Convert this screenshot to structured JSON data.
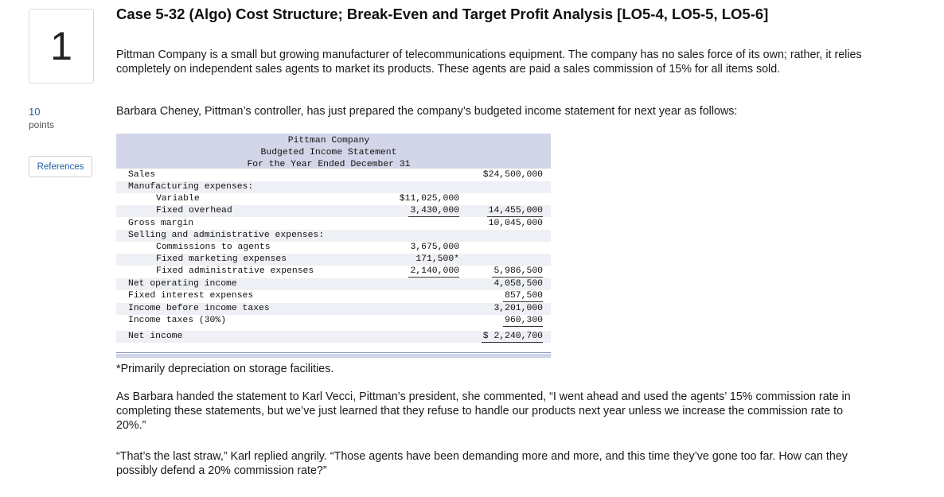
{
  "sidebar": {
    "question_number": "1",
    "points_value": "10",
    "points_label": "points",
    "references_button": "References"
  },
  "title": "Case 5-32 (Algo) Cost Structure; Break-Even and Target Profit Analysis [LO5-4, LO5-5, LO5-6]",
  "paragraphs": {
    "intro": "Pittman Company is a small but growing manufacturer of telecommunications equipment. The company has no sales force of its own; rather, it relies completely on independent sales agents to market its products. These agents are paid a sales commission of 15% for all items sold.",
    "controller": "Barbara Cheney, Pittman’s controller, has just prepared the company’s budgeted income statement for next year as follows:",
    "footnote": "*Primarily depreciation on storage facilities.",
    "handed": "As Barbara handed the statement to Karl Vecci, Pittman’s president, she commented, “I went ahead and used the agents’ 15% commission rate in completing these statements, but we’ve just learned that they refuse to handle our products next year unless we increase the commission rate to 20%.”",
    "karl": "“That’s the last straw,” Karl replied angrily. “Those agents have been demanding more and more, and this time they’ve gone too far. How can they possibly defend a 20% commission rate?”"
  },
  "statement": {
    "company": "Pittman Company",
    "name": "Budgeted Income Statement",
    "period": "For the Year Ended December 31",
    "rows": [
      {
        "label": "Sales",
        "indent": 0,
        "c1": "",
        "c2": "$24,500,000"
      },
      {
        "label": "Manufacturing expenses:",
        "indent": 0,
        "c1": "",
        "c2": ""
      },
      {
        "label": "Variable",
        "indent": 1,
        "c1": "$11,025,000",
        "c2": ""
      },
      {
        "label": "Fixed overhead",
        "indent": 1,
        "c1": "3,430,000",
        "c2": "14,455,000"
      },
      {
        "label": "Gross margin",
        "indent": 0,
        "c1": "",
        "c2": "10,045,000"
      },
      {
        "label": "Selling and administrative expenses:",
        "indent": 0,
        "c1": "",
        "c2": ""
      },
      {
        "label": "Commissions to agents",
        "indent": 1,
        "c1": "3,675,000",
        "c2": ""
      },
      {
        "label": "Fixed marketing expenses",
        "indent": 1,
        "c1": "171,500*",
        "c2": ""
      },
      {
        "label": "Fixed administrative expenses",
        "indent": 1,
        "c1": "2,140,000",
        "c2": "5,986,500"
      },
      {
        "label": "Net operating income",
        "indent": 0,
        "c1": "",
        "c2": "4,058,500"
      },
      {
        "label": "Fixed interest expenses",
        "indent": 0,
        "c1": "",
        "c2": "857,500"
      },
      {
        "label": "Income before income taxes",
        "indent": 0,
        "c1": "",
        "c2": "3,201,000"
      },
      {
        "label": "Income taxes (30%)",
        "indent": 0,
        "c1": "",
        "c2": "960,300"
      },
      {
        "label": "Net income",
        "indent": 0,
        "c1": "",
        "c2": "$ 2,240,700"
      }
    ]
  }
}
